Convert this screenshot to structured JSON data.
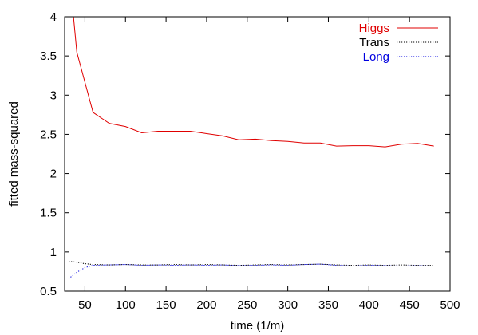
{
  "chart_data": {
    "type": "line",
    "title": "",
    "xlabel": "time (1/m)",
    "ylabel": "fitted mass-squared",
    "xlim": [
      25,
      500
    ],
    "ylim": [
      0.5,
      4
    ],
    "xticks": [
      50,
      100,
      150,
      200,
      250,
      300,
      350,
      400,
      450,
      500
    ],
    "yticks": [
      0.5,
      1,
      1.5,
      2,
      2.5,
      3,
      3.5,
      4
    ],
    "ytick_labels": [
      "0.5",
      "1",
      "1.5",
      "2",
      "2.5",
      "3",
      "3.5",
      "4"
    ],
    "grid": false,
    "legend": "top-right",
    "series": [
      {
        "name": "Higgs",
        "color": "#e00000",
        "style": "solid",
        "x": [
          35,
          40,
          60,
          80,
          100,
          120,
          140,
          160,
          180,
          200,
          220,
          240,
          260,
          280,
          300,
          320,
          340,
          360,
          380,
          400,
          420,
          440,
          460,
          480
        ],
        "y": [
          4.1,
          3.55,
          2.78,
          2.64,
          2.6,
          2.52,
          2.54,
          2.54,
          2.54,
          2.51,
          2.48,
          2.43,
          2.44,
          2.42,
          2.41,
          2.39,
          2.39,
          2.35,
          2.355,
          2.355,
          2.34,
          2.375,
          2.385,
          2.35
        ]
      },
      {
        "name": "Trans",
        "color": "#000000",
        "style": "dotted",
        "x": [
          30,
          40,
          50,
          60,
          80,
          100,
          120,
          140,
          160,
          180,
          200,
          220,
          240,
          260,
          280,
          300,
          320,
          340,
          360,
          380,
          400,
          420,
          440,
          460,
          480
        ],
        "y": [
          0.88,
          0.87,
          0.85,
          0.84,
          0.835,
          0.84,
          0.835,
          0.835,
          0.84,
          0.835,
          0.84,
          0.835,
          0.83,
          0.835,
          0.84,
          0.835,
          0.84,
          0.845,
          0.835,
          0.83,
          0.835,
          0.83,
          0.835,
          0.83,
          0.83
        ]
      },
      {
        "name": "Long",
        "color": "#0000e0",
        "style": "dotted",
        "x": [
          30,
          40,
          50,
          60,
          80,
          100,
          120,
          140,
          160,
          180,
          200,
          220,
          240,
          260,
          280,
          300,
          320,
          340,
          360,
          380,
          400,
          420,
          440,
          460,
          480
        ],
        "y": [
          0.66,
          0.74,
          0.8,
          0.83,
          0.835,
          0.84,
          0.83,
          0.835,
          0.83,
          0.835,
          0.83,
          0.835,
          0.825,
          0.83,
          0.835,
          0.83,
          0.84,
          0.845,
          0.83,
          0.82,
          0.83,
          0.825,
          0.82,
          0.825,
          0.82
        ]
      }
    ]
  }
}
